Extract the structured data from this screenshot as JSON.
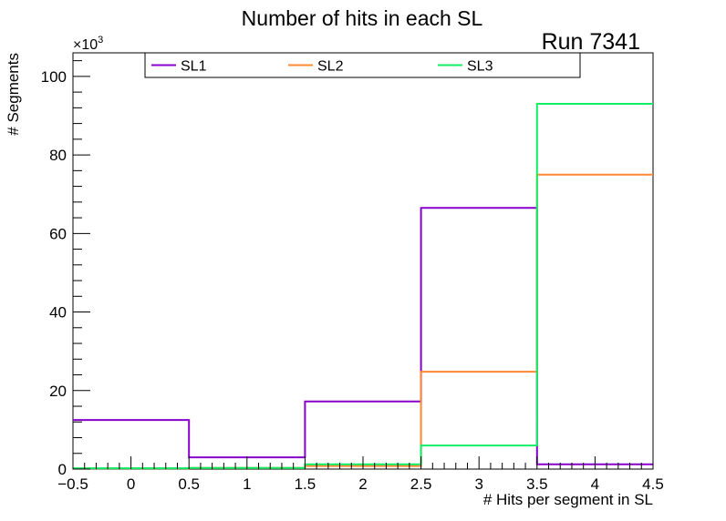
{
  "chart_data": {
    "type": "histogram-step",
    "title": "Number of hits in each SL",
    "run_label": "Run 7341",
    "xlabel": "# Hits per segment in SL",
    "ylabel": "# Segments",
    "y_multiplier": "×10",
    "y_multiplier_exp": "3",
    "xlim": [
      -0.5,
      4.5
    ],
    "ylim": [
      0,
      106
    ],
    "x_ticks": [
      -0.5,
      0,
      0.5,
      1,
      1.5,
      2,
      2.5,
      3,
      3.5,
      4,
      4.5
    ],
    "x_tick_labels": [
      "−0.5",
      "0",
      "0.5",
      "1",
      "1.5",
      "2",
      "2.5",
      "3",
      "3.5",
      "4",
      "4.5"
    ],
    "y_ticks": [
      0,
      20,
      40,
      60,
      80,
      100
    ],
    "y_tick_labels": [
      "0",
      "20",
      "40",
      "60",
      "80",
      "100"
    ],
    "bin_edges": [
      -0.5,
      0.5,
      1.5,
      2.5,
      3.5,
      4.5
    ],
    "series": [
      {
        "name": "SL1",
        "color": "#8800cc",
        "values": [
          12.5,
          3.0,
          17.2,
          66.5,
          1.2
        ]
      },
      {
        "name": "SL2",
        "color": "#ff8833",
        "values": [
          0.2,
          0.3,
          0.8,
          24.8,
          75.0
        ]
      },
      {
        "name": "SL3",
        "color": "#11ee66",
        "values": [
          0.2,
          0.3,
          1.2,
          6.0,
          93.0
        ]
      }
    ]
  }
}
